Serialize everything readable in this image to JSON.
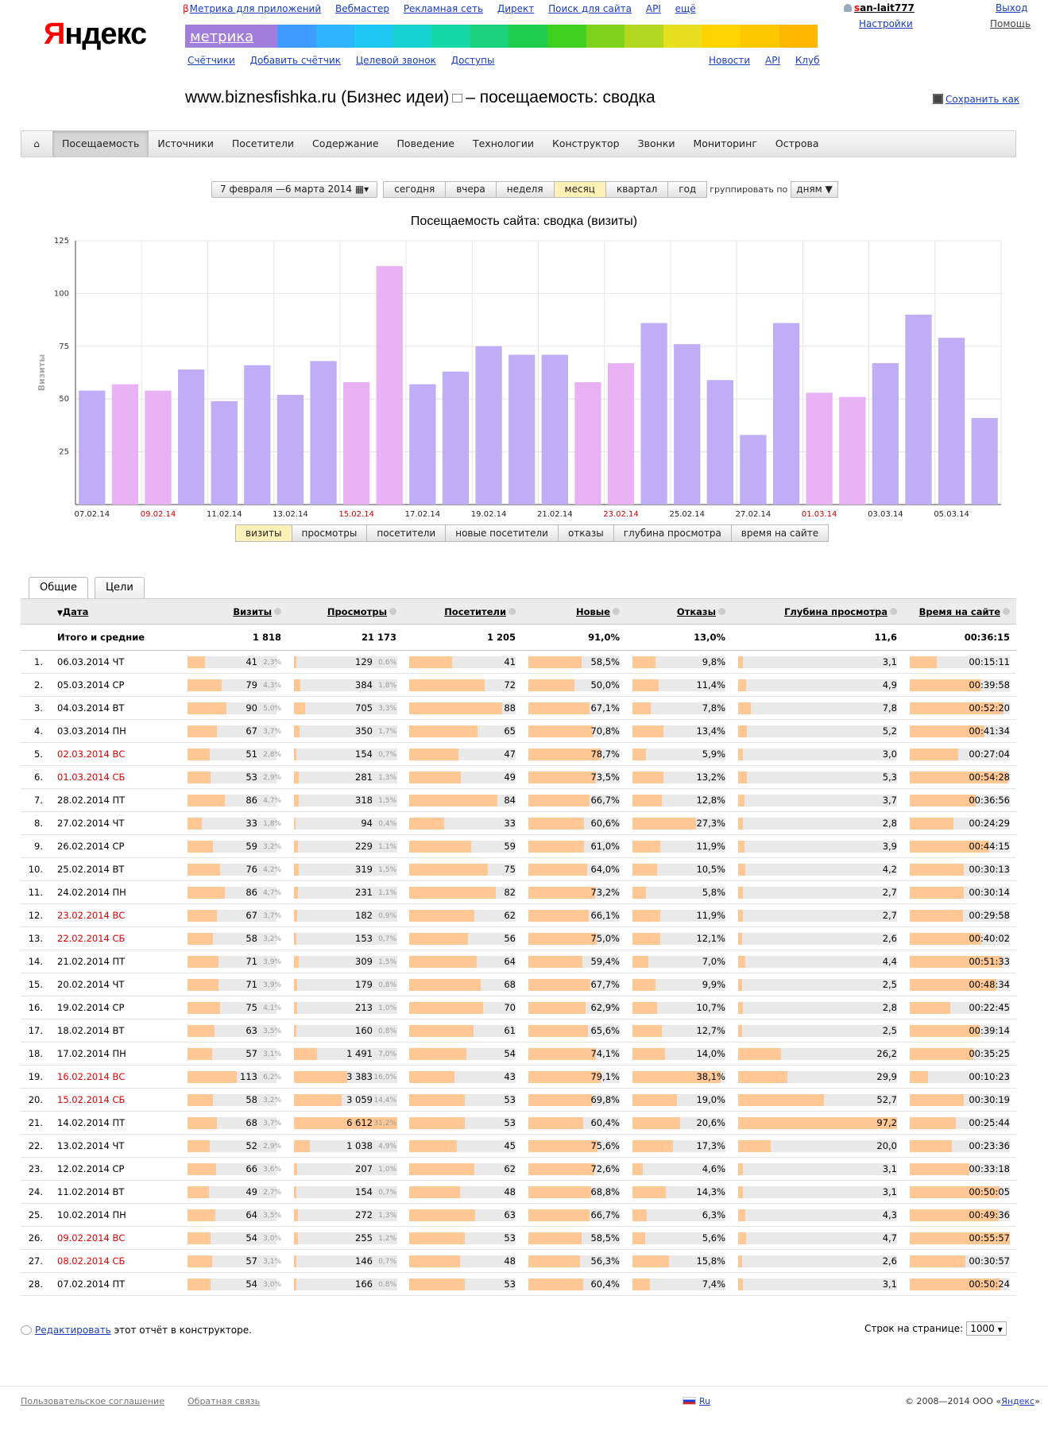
{
  "logo": {
    "first": "Я",
    "rest": "ндекс"
  },
  "service_nav": {
    "beta": "β",
    "items": [
      "Метрика для приложений",
      "Вебмастер",
      "Рекламная сеть",
      "Директ",
      "Поиск для сайта",
      "API",
      "ещё"
    ]
  },
  "metrika_label": "метрика",
  "rainbow_colors": [
    "#3f9bff",
    "#2eb4ff",
    "#1fc8f2",
    "#17d1d2",
    "#16d7a8",
    "#17d27a",
    "#1ccc4a",
    "#3ed021",
    "#7ed21c",
    "#b4d820",
    "#e8e01f",
    "#ffd400",
    "#ffc700",
    "#ffb800"
  ],
  "sub_nav_left": [
    "Счётчики",
    "Добавить счётчик",
    "Целевой звонок",
    "Доступы"
  ],
  "sub_nav_right": [
    "Новости",
    "API",
    "Клуб"
  ],
  "user": {
    "name_first": "s",
    "name_rest": "an-lait777",
    "settings": "Настройки",
    "logout": "Выход",
    "help": "Помощь"
  },
  "page_title": {
    "site": "www.biznesfishka.ru (Бизнес идеи)",
    "suffix": "– посещаемость: сводка"
  },
  "save_as": "Сохранить как",
  "main_tabs": [
    "Посещаемость",
    "Источники",
    "Посетители",
    "Содержание",
    "Поведение",
    "Технологии",
    "Конструктор",
    "Звонки",
    "Мониторинг",
    "Острова"
  ],
  "home_icon": "home-icon",
  "period": {
    "date_range": "7 февраля —6 марта 2014",
    "presets": [
      "сегодня",
      "вчера",
      "неделя",
      "месяц",
      "квартал",
      "год"
    ],
    "active_preset": "месяц",
    "group_label": "группировать по",
    "group_value": "дням"
  },
  "chart_data": {
    "type": "bar",
    "title": "Посещаемость сайта: сводка (визиты)",
    "ylabel": "Визиты",
    "ylim": [
      0,
      125
    ],
    "yticks": [
      25,
      50,
      75,
      100,
      125
    ],
    "categories": [
      "07.02.14",
      "08.02.14",
      "09.02.14",
      "10.02.14",
      "11.02.14",
      "12.02.14",
      "13.02.14",
      "14.02.14",
      "15.02.14",
      "16.02.14",
      "17.02.14",
      "18.02.14",
      "19.02.14",
      "20.02.14",
      "21.02.14",
      "22.02.14",
      "23.02.14",
      "24.02.14",
      "25.02.14",
      "26.02.14",
      "27.02.14",
      "28.02.14",
      "01.03.14",
      "02.03.14",
      "03.03.14",
      "04.03.14",
      "05.03.14",
      "06.03.14"
    ],
    "values": [
      54,
      57,
      54,
      64,
      49,
      66,
      52,
      68,
      58,
      113,
      57,
      63,
      75,
      71,
      71,
      58,
      67,
      86,
      76,
      59,
      33,
      86,
      53,
      51,
      67,
      90,
      79,
      41
    ],
    "weekend": [
      false,
      true,
      true,
      false,
      false,
      false,
      false,
      false,
      true,
      true,
      false,
      false,
      false,
      false,
      false,
      true,
      true,
      false,
      false,
      false,
      false,
      false,
      true,
      true,
      false,
      false,
      false,
      false
    ],
    "x_tick_labels": [
      "07.02.14",
      "09.02.14",
      "11.02.14",
      "13.02.14",
      "15.02.14",
      "17.02.14",
      "19.02.14",
      "21.02.14",
      "23.02.14",
      "25.02.14",
      "27.02.14",
      "01.03.14",
      "03.03.14",
      "05.03.14"
    ],
    "x_tick_weekend": [
      false,
      true,
      false,
      false,
      true,
      false,
      false,
      false,
      true,
      false,
      false,
      true,
      false,
      false
    ],
    "colors": {
      "weekday": "#bfadf5",
      "weekend": "#e8b2f5",
      "weekend_tick": "#d00000",
      "grid": "#e6e6e6"
    }
  },
  "metric_tabs": [
    "визиты",
    "просмотры",
    "посетители",
    "новые посетители",
    "отказы",
    "глубина просмотра",
    "время на сайте"
  ],
  "table_tabs": [
    "Общие",
    "Цели"
  ],
  "table": {
    "headers": [
      "Дата",
      "Визиты",
      "Просмотры",
      "Посетители",
      "Новые",
      "Отказы",
      "Глубина просмотра",
      "Время на сайте"
    ],
    "totals": {
      "label": "Итого и средние",
      "visits": "1 818",
      "views": "21 173",
      "visitors": "1 205",
      "new": "91,0%",
      "bounce": "13,0%",
      "depth": "11,6",
      "time": "00:36:15"
    },
    "rows": [
      {
        "date": "06.03.2014 ЧТ",
        "weekend": false,
        "visits": "41",
        "visits_pct": "2,3%",
        "views": "129",
        "views_pct": "0,6%",
        "visitors": "41",
        "new": "58,5%",
        "bounce": "9,8%",
        "depth": "3,1",
        "time": "00:15:11"
      },
      {
        "date": "05.03.2014 СР",
        "weekend": false,
        "visits": "79",
        "visits_pct": "4,3%",
        "views": "384",
        "views_pct": "1,8%",
        "visitors": "72",
        "new": "50,0%",
        "bounce": "11,4%",
        "depth": "4,9",
        "time": "00:39:58"
      },
      {
        "date": "04.03.2014 ВТ",
        "weekend": false,
        "visits": "90",
        "visits_pct": "5,0%",
        "views": "705",
        "views_pct": "3,3%",
        "visitors": "88",
        "new": "67,1%",
        "bounce": "7,8%",
        "depth": "7,8",
        "time": "00:52:20"
      },
      {
        "date": "03.03.2014 ПН",
        "weekend": false,
        "visits": "67",
        "visits_pct": "3,7%",
        "views": "350",
        "views_pct": "1,7%",
        "visitors": "65",
        "new": "70,8%",
        "bounce": "13,4%",
        "depth": "5,2",
        "time": "00:41:34"
      },
      {
        "date": "02.03.2014 ВС",
        "weekend": true,
        "visits": "51",
        "visits_pct": "2,8%",
        "views": "154",
        "views_pct": "0,7%",
        "visitors": "47",
        "new": "78,7%",
        "bounce": "5,9%",
        "depth": "3,0",
        "time": "00:27:04"
      },
      {
        "date": "01.03.2014 СБ",
        "weekend": true,
        "visits": "53",
        "visits_pct": "2,9%",
        "views": "281",
        "views_pct": "1,3%",
        "visitors": "49",
        "new": "73,5%",
        "bounce": "13,2%",
        "depth": "5,3",
        "time": "00:54:28"
      },
      {
        "date": "28.02.2014 ПТ",
        "weekend": false,
        "visits": "86",
        "visits_pct": "4,7%",
        "views": "318",
        "views_pct": "1,5%",
        "visitors": "84",
        "new": "66,7%",
        "bounce": "12,8%",
        "depth": "3,7",
        "time": "00:36:56"
      },
      {
        "date": "27.02.2014 ЧТ",
        "weekend": false,
        "visits": "33",
        "visits_pct": "1,8%",
        "views": "94",
        "views_pct": "0,4%",
        "visitors": "33",
        "new": "60,6%",
        "bounce": "27,3%",
        "depth": "2,8",
        "time": "00:24:29"
      },
      {
        "date": "26.02.2014 СР",
        "weekend": false,
        "visits": "59",
        "visits_pct": "3,2%",
        "views": "229",
        "views_pct": "1,1%",
        "visitors": "59",
        "new": "61,0%",
        "bounce": "11,9%",
        "depth": "3,9",
        "time": "00:44:15"
      },
      {
        "date": "25.02.2014 ВТ",
        "weekend": false,
        "visits": "76",
        "visits_pct": "4,2%",
        "views": "319",
        "views_pct": "1,5%",
        "visitors": "75",
        "new": "64,0%",
        "bounce": "10,5%",
        "depth": "4,2",
        "time": "00:30:13"
      },
      {
        "date": "24.02.2014 ПН",
        "weekend": false,
        "visits": "86",
        "visits_pct": "4,7%",
        "views": "231",
        "views_pct": "1,1%",
        "visitors": "82",
        "new": "73,2%",
        "bounce": "5,8%",
        "depth": "2,7",
        "time": "00:30:14"
      },
      {
        "date": "23.02.2014 ВС",
        "weekend": true,
        "visits": "67",
        "visits_pct": "3,7%",
        "views": "182",
        "views_pct": "0,9%",
        "visitors": "62",
        "new": "66,1%",
        "bounce": "11,9%",
        "depth": "2,7",
        "time": "00:29:58"
      },
      {
        "date": "22.02.2014 СБ",
        "weekend": true,
        "visits": "58",
        "visits_pct": "3,2%",
        "views": "153",
        "views_pct": "0,7%",
        "visitors": "56",
        "new": "75,0%",
        "bounce": "12,1%",
        "depth": "2,6",
        "time": "00:40:02"
      },
      {
        "date": "21.02.2014 ПТ",
        "weekend": false,
        "visits": "71",
        "visits_pct": "3,9%",
        "views": "309",
        "views_pct": "1,5%",
        "visitors": "64",
        "new": "59,4%",
        "bounce": "7,0%",
        "depth": "4,4",
        "time": "00:51:33"
      },
      {
        "date": "20.02.2014 ЧТ",
        "weekend": false,
        "visits": "71",
        "visits_pct": "3,9%",
        "views": "179",
        "views_pct": "0,8%",
        "visitors": "68",
        "new": "67,7%",
        "bounce": "9,9%",
        "depth": "2,5",
        "time": "00:48:34"
      },
      {
        "date": "19.02.2014 СР",
        "weekend": false,
        "visits": "75",
        "visits_pct": "4,1%",
        "views": "213",
        "views_pct": "1,0%",
        "visitors": "70",
        "new": "62,9%",
        "bounce": "10,7%",
        "depth": "2,8",
        "time": "00:22:45"
      },
      {
        "date": "18.02.2014 ВТ",
        "weekend": false,
        "visits": "63",
        "visits_pct": "3,5%",
        "views": "160",
        "views_pct": "0,8%",
        "visitors": "61",
        "new": "65,6%",
        "bounce": "12,7%",
        "depth": "2,5",
        "time": "00:39:14"
      },
      {
        "date": "17.02.2014 ПН",
        "weekend": false,
        "visits": "57",
        "visits_pct": "3,1%",
        "views": "1 491",
        "views_pct": "7,0%",
        "visitors": "54",
        "new": "74,1%",
        "bounce": "14,0%",
        "depth": "26,2",
        "time": "00:35:25"
      },
      {
        "date": "16.02.2014 ВС",
        "weekend": true,
        "visits": "113",
        "visits_pct": "6,2%",
        "views": "3 383",
        "views_pct": "16,0%",
        "visitors": "43",
        "new": "79,1%",
        "bounce": "38,1%",
        "depth": "29,9",
        "time": "00:10:23"
      },
      {
        "date": "15.02.2014 СБ",
        "weekend": true,
        "visits": "58",
        "visits_pct": "3,2%",
        "views": "3 059",
        "views_pct": "14,4%",
        "visitors": "53",
        "new": "69,8%",
        "bounce": "19,0%",
        "depth": "52,7",
        "time": "00:30:19"
      },
      {
        "date": "14.02.2014 ПТ",
        "weekend": false,
        "visits": "68",
        "visits_pct": "3,7%",
        "views": "6 612",
        "views_pct": "31,2%",
        "visitors": "53",
        "new": "60,4%",
        "bounce": "20,6%",
        "depth": "97,2",
        "time": "00:25:44"
      },
      {
        "date": "13.02.2014 ЧТ",
        "weekend": false,
        "visits": "52",
        "visits_pct": "2,9%",
        "views": "1 038",
        "views_pct": "4,9%",
        "visitors": "45",
        "new": "75,6%",
        "bounce": "17,3%",
        "depth": "20,0",
        "time": "00:23:36"
      },
      {
        "date": "12.02.2014 СР",
        "weekend": false,
        "visits": "66",
        "visits_pct": "3,6%",
        "views": "207",
        "views_pct": "1,0%",
        "visitors": "62",
        "new": "72,6%",
        "bounce": "4,6%",
        "depth": "3,1",
        "time": "00:33:18"
      },
      {
        "date": "11.02.2014 ВТ",
        "weekend": false,
        "visits": "49",
        "visits_pct": "2,7%",
        "views": "154",
        "views_pct": "0,7%",
        "visitors": "48",
        "new": "68,8%",
        "bounce": "14,3%",
        "depth": "3,1",
        "time": "00:50:05"
      },
      {
        "date": "10.02.2014 ПН",
        "weekend": false,
        "visits": "64",
        "visits_pct": "3,5%",
        "views": "272",
        "views_pct": "1,3%",
        "visitors": "63",
        "new": "66,7%",
        "bounce": "6,3%",
        "depth": "4,3",
        "time": "00:49:36"
      },
      {
        "date": "09.02.2014 ВС",
        "weekend": true,
        "visits": "54",
        "visits_pct": "3,0%",
        "views": "255",
        "views_pct": "1,2%",
        "visitors": "53",
        "new": "58,5%",
        "bounce": "5,6%",
        "depth": "4,7",
        "time": "00:55:57"
      },
      {
        "date": "08.02.2014 СБ",
        "weekend": true,
        "visits": "57",
        "visits_pct": "3,1%",
        "views": "146",
        "views_pct": "0,7%",
        "visitors": "48",
        "new": "56,3%",
        "bounce": "15,8%",
        "depth": "2,6",
        "time": "00:30:57"
      },
      {
        "date": "07.02.2014 ПТ",
        "weekend": false,
        "visits": "54",
        "visits_pct": "3,0%",
        "views": "166",
        "views_pct": "0,8%",
        "visitors": "53",
        "new": "60,4%",
        "bounce": "7,4%",
        "depth": "3,1",
        "time": "00:50:24"
      }
    ]
  },
  "footer": {
    "edit_link": "Редактировать",
    "edit_text": " этот отчёт в конструкторе.",
    "rows_label": "Строк на странице:",
    "rows_value": "1000",
    "agreement": "Пользовательское соглашение",
    "feedback": "Обратная связь",
    "lang": "Ru",
    "copyright_prefix": "© 2008—2014 ООО «",
    "copyright_link": "Яндекс",
    "copyright_suffix": "»"
  }
}
